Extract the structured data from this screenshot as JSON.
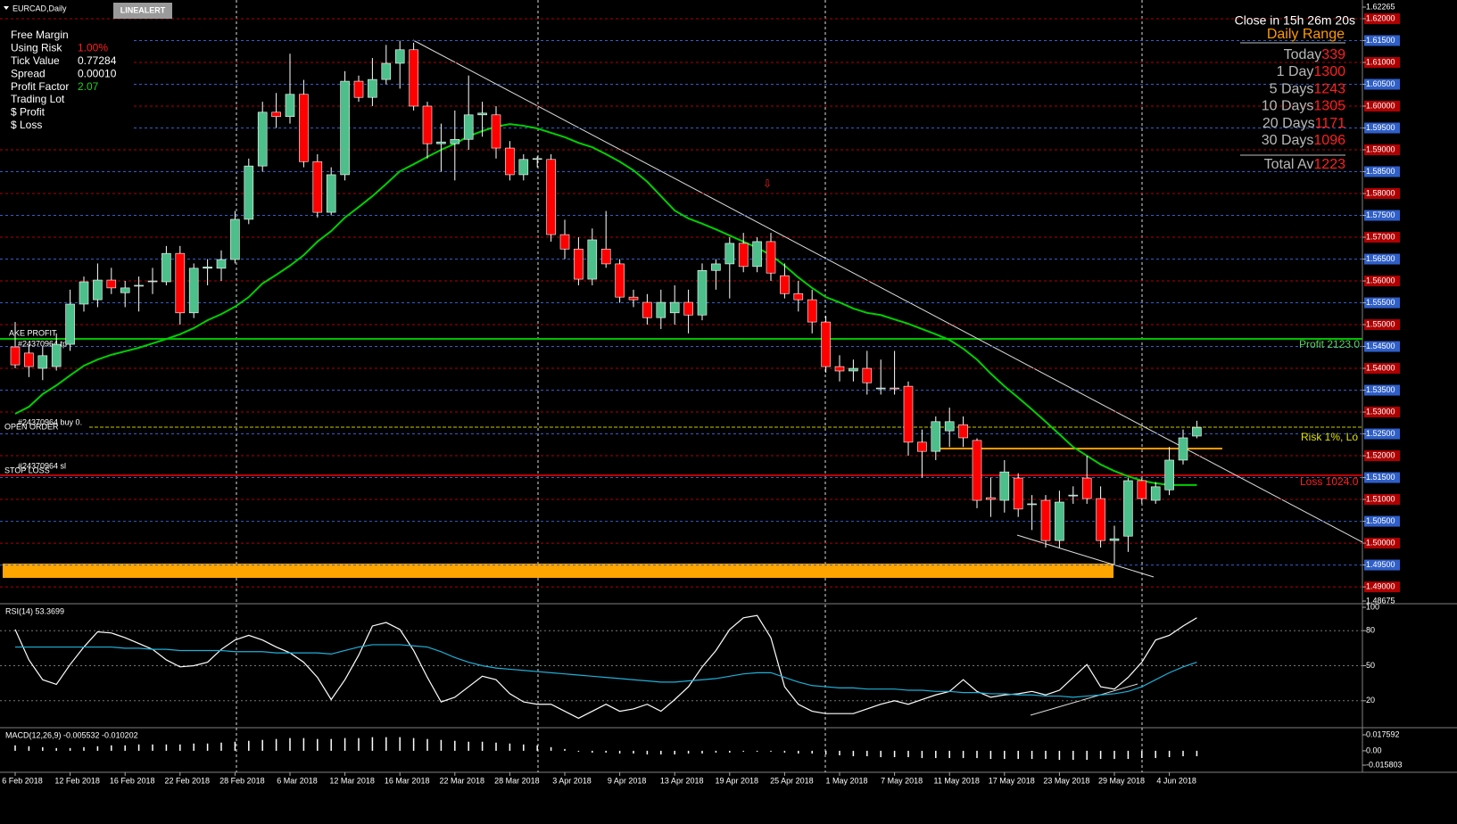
{
  "window": {
    "title": "EURCAD,Daily",
    "button": "LINEALERT",
    "countdown": "Close in 15h 26m 20s"
  },
  "info_panel": {
    "rows": [
      [
        "Free Margin",
        ""
      ],
      [
        "Using Risk",
        "1.00%"
      ],
      [
        "Tick Value",
        "0.77284"
      ],
      [
        "Spread",
        "0.00010"
      ],
      [
        "Profit Factor",
        "2.07"
      ],
      [
        "Trading Lot",
        ""
      ],
      [
        "$ Profit",
        ""
      ],
      [
        "$ Loss",
        ""
      ]
    ]
  },
  "daily_range": {
    "title": "Daily Range",
    "rows": [
      [
        "Today",
        "339"
      ],
      [
        "1 Day",
        "1300"
      ],
      [
        "5 Days",
        "1243"
      ],
      [
        "10 Days",
        "1305"
      ],
      [
        "20 Days",
        "1171"
      ],
      [
        "30 Days",
        "1096"
      ]
    ],
    "total": [
      "Total Av",
      "1223"
    ]
  },
  "order_labels": {
    "take_profit": "AKE PROFIT",
    "tp": "#24370964 tp",
    "open_order": "OPEN ORDER",
    "buy": "#24370964 buy 0.",
    "stop_loss": "STOP LOSS",
    "sl": "#24370964 sl",
    "profit": "Profit 2123.0",
    "risk": "Risk 1%, Lo",
    "loss": "Loss 1024.0"
  },
  "chart_data": [
    {
      "type": "candlestick",
      "title": "EURCAD,Daily",
      "up_color": "#4cbf8a",
      "down_color": "#ff0000",
      "grid": true,
      "grid_colors": {
        "major": "#b00000",
        "minor": "#2f5fc8"
      },
      "categories": [
        "6 Feb 2018",
        null,
        null,
        null,
        "12 Feb 2018",
        null,
        null,
        null,
        "16 Feb 2018",
        null,
        null,
        null,
        "22 Feb 2018",
        null,
        null,
        null,
        "28 Feb 2018",
        null,
        null,
        null,
        "6 Mar 2018",
        null,
        null,
        null,
        "12 Mar 2018",
        null,
        null,
        null,
        "16 Mar 2018",
        null,
        null,
        null,
        "22 Mar 2018",
        null,
        null,
        null,
        "28 Mar 2018",
        null,
        null,
        null,
        "3 Apr 2018",
        null,
        null,
        null,
        "9 Apr 2018",
        null,
        null,
        null,
        "13 Apr 2018",
        null,
        null,
        null,
        "19 Apr 2018",
        null,
        null,
        null,
        "25 Apr 2018",
        null,
        null,
        null,
        "1 May 2018",
        null,
        null,
        null,
        "7 May 2018",
        null,
        null,
        null,
        "11 May 2018",
        null,
        null,
        null,
        "17 May 2018",
        null,
        null,
        null,
        "23 May 2018",
        null,
        null,
        null,
        "29 May 2018",
        null,
        null,
        null,
        "4 Jun 2018",
        null,
        null
      ],
      "open": [
        1.5449,
        1.5435,
        1.54,
        1.5404,
        1.5455,
        1.5547,
        1.5557,
        1.5602,
        1.5573,
        1.5588,
        1.5598,
        1.5598,
        1.5663,
        1.5527,
        1.5629,
        1.5629,
        1.5649,
        1.5741,
        1.5863,
        1.5986,
        1.5976,
        1.6027,
        1.5873,
        1.5757,
        1.5843,
        1.6057,
        1.602,
        1.6061,
        1.6098,
        1.6129,
        1.6,
        1.5914,
        1.5914,
        1.5924,
        1.598,
        1.598,
        1.5904,
        1.5843,
        1.5878,
        1.5878,
        1.5706,
        1.5673,
        1.5604,
        1.5673,
        1.5639,
        1.5563,
        1.5551,
        1.5516,
        1.5527,
        1.5551,
        1.5522,
        1.5624,
        1.5639,
        1.5686,
        1.5633,
        1.569,
        1.5612,
        1.5571,
        1.5557,
        1.5506,
        1.5404,
        1.5394,
        1.54,
        1.5353,
        1.5355,
        1.5359,
        1.5231,
        1.521,
        1.5257,
        1.5271,
        1.5235,
        1.5104,
        1.5098,
        1.5149,
        1.5088,
        1.5098,
        1.5006,
        1.5108,
        1.5149,
        1.5102,
        1.5006,
        1.5016,
        1.5143,
        1.5098,
        1.5122,
        1.519,
        1.5245
      ],
      "high": [
        1.5506,
        1.5453,
        1.545,
        1.548,
        1.558,
        1.561,
        1.564,
        1.563,
        1.56,
        1.561,
        1.563,
        1.568,
        1.568,
        1.564,
        1.565,
        1.567,
        1.576,
        1.588,
        1.601,
        1.603,
        1.612,
        1.606,
        1.589,
        1.586,
        1.608,
        1.607,
        1.611,
        1.614,
        1.615,
        1.6145,
        1.601,
        1.596,
        1.599,
        1.607,
        1.601,
        1.6,
        1.592,
        1.589,
        1.5885,
        1.589,
        1.574,
        1.57,
        1.572,
        1.576,
        1.565,
        1.558,
        1.557,
        1.558,
        1.559,
        1.558,
        1.564,
        1.565,
        1.57,
        1.571,
        1.57,
        1.571,
        1.564,
        1.56,
        1.558,
        1.552,
        1.543,
        1.542,
        1.544,
        1.542,
        1.544,
        1.537,
        1.526,
        1.529,
        1.531,
        1.529,
        1.524,
        1.515,
        1.519,
        1.516,
        1.511,
        1.511,
        1.512,
        1.513,
        1.52,
        1.513,
        1.504,
        1.515,
        1.515,
        1.514,
        1.522,
        1.526,
        1.528
      ],
      "low": [
        1.54,
        1.538,
        1.5373,
        1.5395,
        1.544,
        1.553,
        1.554,
        1.557,
        1.554,
        1.553,
        1.557,
        1.559,
        1.55,
        1.5515,
        1.559,
        1.56,
        1.564,
        1.573,
        1.585,
        1.595,
        1.596,
        1.586,
        1.5745,
        1.575,
        1.583,
        1.601,
        1.6,
        1.605,
        1.604,
        1.599,
        1.588,
        1.585,
        1.583,
        1.59,
        1.593,
        1.588,
        1.583,
        1.583,
        1.586,
        1.569,
        1.565,
        1.559,
        1.559,
        1.563,
        1.555,
        1.554,
        1.55,
        1.549,
        1.55,
        1.548,
        1.551,
        1.558,
        1.556,
        1.562,
        1.562,
        1.56,
        1.556,
        1.553,
        1.548,
        1.539,
        1.537,
        1.537,
        1.534,
        1.534,
        1.534,
        1.52,
        1.515,
        1.519,
        1.522,
        1.522,
        1.508,
        1.506,
        1.507,
        1.506,
        1.503,
        1.499,
        1.499,
        1.509,
        1.509,
        1.499,
        1.495,
        1.498,
        1.509,
        1.509,
        1.511,
        1.518,
        1.524
      ],
      "close": [
        1.5408,
        1.5404,
        1.5429,
        1.5455,
        1.5547,
        1.5598,
        1.5602,
        1.5584,
        1.5584,
        1.559,
        1.56,
        1.5663,
        1.5527,
        1.5629,
        1.5632,
        1.5649,
        1.5741,
        1.5863,
        1.5986,
        1.5976,
        1.6027,
        1.5873,
        1.5757,
        1.5843,
        1.6057,
        1.602,
        1.6061,
        1.6098,
        1.6129,
        1.6,
        1.5914,
        1.5918,
        1.5924,
        1.598,
        1.5984,
        1.5904,
        1.5843,
        1.5878,
        1.588,
        1.5706,
        1.5673,
        1.5604,
        1.5694,
        1.5639,
        1.5563,
        1.5557,
        1.5516,
        1.5551,
        1.5551,
        1.5522,
        1.5624,
        1.5639,
        1.5686,
        1.5633,
        1.569,
        1.5618,
        1.5571,
        1.5557,
        1.5506,
        1.5404,
        1.5394,
        1.54,
        1.5367,
        1.5355,
        1.5353,
        1.5231,
        1.521,
        1.5278,
        1.5278,
        1.5241,
        1.5098,
        1.51,
        1.5163,
        1.5078,
        1.509,
        1.5006,
        1.5094,
        1.511,
        1.5102,
        1.5006,
        1.501,
        1.5143,
        1.5102,
        1.5129,
        1.519,
        1.5241,
        1.5265
      ],
      "series": [
        {
          "color": "#00d000",
          "values": [
            1.5296,
            1.5312,
            1.5341,
            1.5361,
            1.5384,
            1.5406,
            1.542,
            1.5431,
            1.5439,
            1.5447,
            1.5457,
            1.5467,
            1.5478,
            1.5492,
            1.551,
            1.5524,
            1.5541,
            1.5563,
            1.5594,
            1.5614,
            1.5635,
            1.5659,
            1.569,
            1.5714,
            1.5745,
            1.5769,
            1.5794,
            1.5822,
            1.5851,
            1.5867,
            1.5884,
            1.59,
            1.5914,
            1.5931,
            1.5943,
            1.5953,
            1.5959,
            1.5955,
            1.5949,
            1.5939,
            1.5929,
            1.5916,
            1.5906,
            1.589,
            1.5873,
            1.5853,
            1.5827,
            1.5794,
            1.5761,
            1.5743,
            1.5731,
            1.5718,
            1.5704,
            1.569,
            1.5676,
            1.5659,
            1.5635,
            1.5608,
            1.5584,
            1.5563,
            1.5551,
            1.5537,
            1.5527,
            1.5522,
            1.5512,
            1.5502,
            1.549,
            1.5478,
            1.5465,
            1.5445,
            1.542,
            1.5388,
            1.5359,
            1.5333,
            1.5306,
            1.5278,
            1.5249,
            1.522,
            1.52,
            1.518,
            1.5165,
            1.5153,
            1.5143,
            1.5137,
            1.5133,
            1.5133,
            1.5133
          ]
        }
      ],
      "ylim": [
        1.48675,
        1.62265
      ],
      "yticks": [
        1.62265,
        {
          "value": 1.62,
          "label": "1.62000"
        },
        {
          "value": 1.615,
          "label": "1.61500"
        },
        {
          "value": 1.61,
          "label": "1.61000"
        },
        {
          "value": 1.605,
          "label": "1.60500"
        },
        {
          "value": 1.6,
          "label": "1.60000"
        },
        {
          "value": 1.595,
          "label": "1.59500"
        },
        {
          "value": 1.59,
          "label": "1.59000"
        },
        {
          "value": 1.585,
          "label": "1.58500"
        },
        {
          "value": 1.58,
          "label": "1.58000"
        },
        {
          "value": 1.575,
          "label": "1.57500"
        },
        {
          "value": 1.57,
          "label": "1.57000"
        },
        {
          "value": 1.565,
          "label": "1.56500"
        },
        {
          "value": 1.56,
          "label": "1.56000"
        },
        {
          "value": 1.555,
          "label": "1.55500"
        },
        {
          "value": 1.55,
          "label": "1.55000"
        },
        {
          "value": 1.545,
          "label": "1.54500"
        },
        {
          "value": 1.54,
          "label": "1.54000"
        },
        {
          "value": 1.535,
          "label": "1.53500"
        },
        {
          "value": 1.53,
          "label": "1.53000"
        },
        {
          "value": 1.525,
          "label": "1.52500"
        },
        {
          "value": 1.52,
          "label": "1.52000"
        },
        {
          "value": 1.515,
          "label": "1.51500"
        },
        {
          "value": 1.51,
          "label": "1.51000"
        },
        {
          "value": 1.505,
          "label": "1.50500"
        },
        {
          "value": 1.5,
          "label": "1.50000"
        },
        {
          "value": 1.495,
          "label": "1.49500"
        },
        {
          "value": 1.49,
          "label": "1.49000"
        },
        1.48675
      ]
    },
    {
      "type": "line",
      "title": "RSI(14) 53.3699",
      "grid": true,
      "series": [
        {
          "color": "#ffffff",
          "values": [
            81,
            55,
            38,
            34,
            51,
            66,
            79,
            78,
            74,
            69,
            64,
            55,
            49,
            50,
            53,
            64,
            72,
            76,
            72,
            66,
            61,
            53,
            40,
            21,
            38,
            59,
            84,
            87,
            81,
            63,
            40,
            19,
            23,
            32,
            41,
            38,
            26,
            19,
            17,
            17,
            11,
            5,
            11,
            17,
            11,
            13,
            17,
            11,
            21,
            32,
            49,
            63,
            81,
            91,
            93,
            74,
            32,
            17,
            11,
            9,
            9,
            9,
            13,
            17,
            20,
            17,
            21,
            25,
            28,
            38,
            28,
            23,
            25,
            26,
            28,
            25,
            29,
            40,
            51,
            32,
            30,
            40,
            53,
            72,
            76,
            84,
            91
          ]
        },
        {
          "color": "#1fb0d8",
          "values": [
            66,
            66,
            66,
            66,
            66,
            66,
            66,
            66,
            65,
            65,
            64,
            64,
            63,
            63,
            63,
            63,
            62,
            62,
            62,
            61,
            61,
            61,
            61,
            60,
            63,
            66,
            68,
            68,
            68,
            67,
            66,
            62,
            57,
            53,
            50,
            48,
            47,
            46,
            45,
            44,
            43,
            42,
            41,
            40,
            39,
            38,
            37,
            36,
            36,
            37,
            38,
            39,
            41,
            43,
            44,
            44,
            40,
            36,
            33,
            32,
            31,
            31,
            30,
            30,
            30,
            29,
            29,
            28,
            28,
            27,
            27,
            26,
            26,
            25,
            25,
            24,
            24,
            23,
            24,
            25,
            26,
            28,
            32,
            38,
            44,
            49,
            53
          ]
        }
      ],
      "ylim": [
        0,
        100
      ],
      "yticks": [
        100,
        80,
        50,
        20
      ]
    },
    {
      "type": "bar",
      "title": "MACD(12,26,9) -0.005532 -0.010202",
      "color": "#ffffff",
      "values": [
        0.006,
        0.005,
        0.004,
        0.003,
        0.003,
        0.004,
        0.005,
        0.006,
        0.006,
        0.007,
        0.007,
        0.007,
        0.007,
        0.008,
        0.008,
        0.009,
        0.01,
        0.011,
        0.012,
        0.013,
        0.014,
        0.014,
        0.013,
        0.013,
        0.014,
        0.014,
        0.015,
        0.015,
        0.015,
        0.014,
        0.013,
        0.012,
        0.011,
        0.01,
        0.01,
        0.009,
        0.008,
        0.007,
        0.006,
        0.004,
        0.002,
        -0.001,
        -0.002,
        -0.002,
        -0.003,
        -0.003,
        -0.004,
        -0.004,
        -0.004,
        -0.003,
        -0.003,
        -0.002,
        -0.002,
        -0.001,
        -0.001,
        -0.001,
        -0.002,
        -0.003,
        -0.003,
        -0.004,
        -0.005,
        -0.006,
        -0.006,
        -0.007,
        -0.007,
        -0.007,
        -0.008,
        -0.008,
        -0.008,
        -0.008,
        -0.008,
        -0.009,
        -0.009,
        -0.009,
        -0.009,
        -0.009,
        -0.01,
        -0.01,
        -0.01,
        -0.009,
        -0.009,
        -0.009,
        -0.008,
        -0.008,
        -0.007,
        -0.006,
        -0.006
      ],
      "ylim": [
        -0.015803,
        0.017592
      ],
      "yticks": [
        0.017592,
        {
          "value": 0,
          "label": "0.00"
        },
        -0.015803
      ]
    }
  ]
}
